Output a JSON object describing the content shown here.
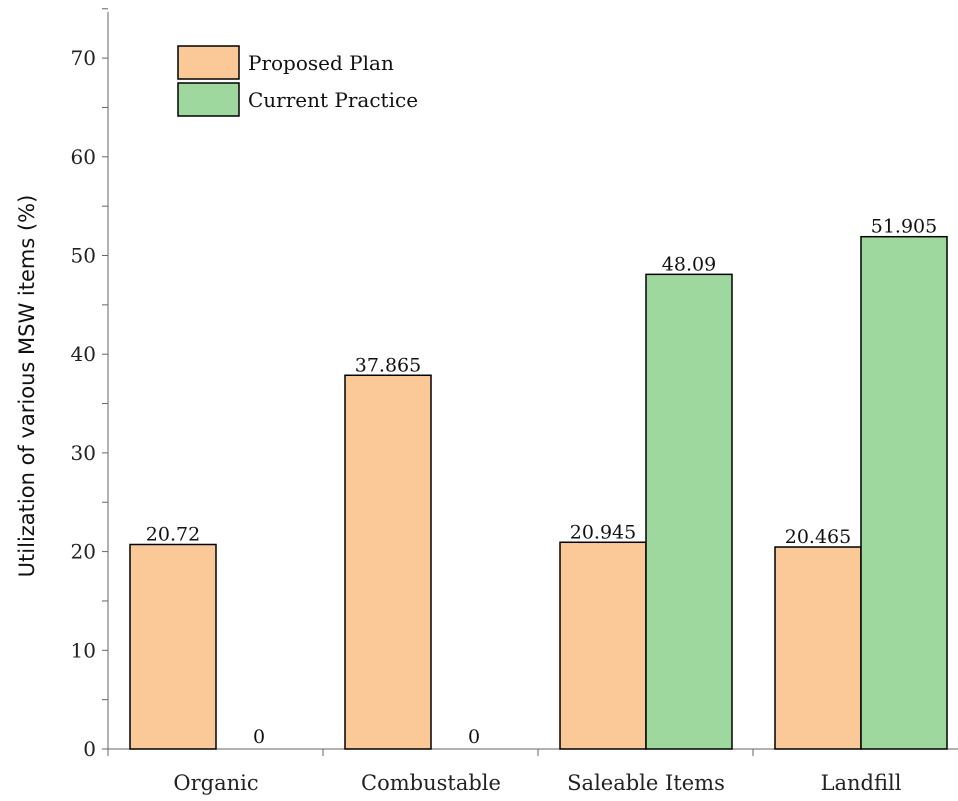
{
  "chart_data": {
    "type": "bar",
    "title": "",
    "xlabel": "",
    "ylabel": "Utilization of various MSW items (%)",
    "ylim": [
      0,
      75
    ],
    "yticks": [
      0,
      10,
      20,
      30,
      40,
      50,
      60,
      70
    ],
    "grid": false,
    "legend_position": "top-left",
    "categories": [
      "Organic",
      "Combustable",
      "Saleable Items",
      "Landfill"
    ],
    "series": [
      {
        "name": "Proposed Plan",
        "color": "#fbc898",
        "values": [
          20.72,
          37.865,
          20.945,
          20.465
        ],
        "labels": [
          "20.72",
          "37.865",
          "20.945",
          "20.465"
        ]
      },
      {
        "name": "Current Practice",
        "color": "#9fd89e",
        "values": [
          0,
          0,
          48.09,
          51.905
        ],
        "labels": [
          "0",
          "0",
          "48.09",
          "51.905"
        ]
      }
    ]
  }
}
